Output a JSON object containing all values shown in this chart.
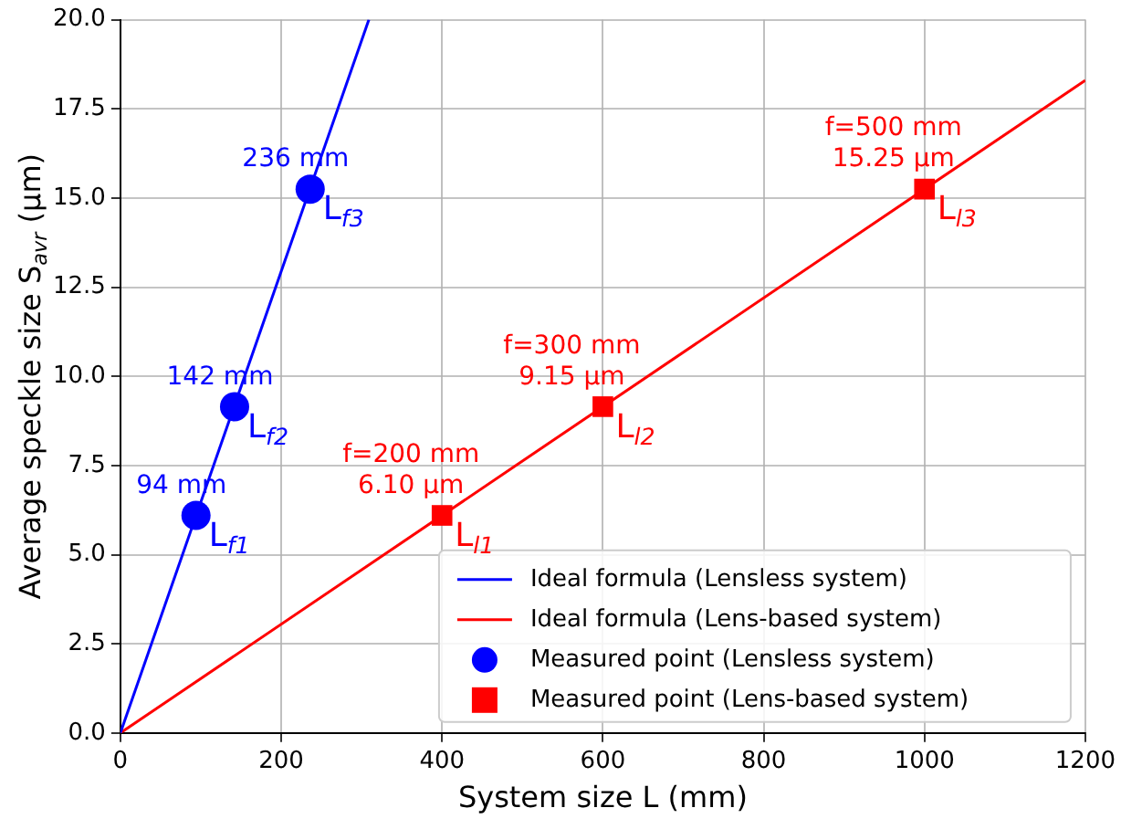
{
  "chart_data": {
    "type": "line",
    "xlabel": "System size L (mm)",
    "ylabel": "Average speckle size S$_{avr}$ (µm)",
    "xlim": [
      0,
      1200
    ],
    "xticks": [
      0,
      200,
      400,
      600,
      800,
      1000,
      1200
    ],
    "ylim": [
      0,
      20
    ],
    "yticks": [
      {
        "value": 0,
        "label": "0.0"
      },
      {
        "value": 2.5,
        "label": "2.5"
      },
      {
        "value": 5,
        "label": "5.0"
      },
      {
        "value": 7.5,
        "label": "7.5"
      },
      {
        "value": 10,
        "label": "10.0"
      },
      {
        "value": 12.5,
        "label": "12.5"
      },
      {
        "value": 15,
        "label": "15.0"
      },
      {
        "value": 17.5,
        "label": "17.5"
      },
      {
        "value": 20,
        "label": "20.0"
      }
    ],
    "grid": true,
    "legend": "bottom right",
    "series": [
      {
        "name": "Ideal formula (Lensless system)",
        "type": "line",
        "color": "#0000ff",
        "x": [
          0,
          309
        ],
        "values": [
          0,
          20
        ],
        "marker": "none"
      },
      {
        "name": "Ideal formula (Lens-based system)",
        "type": "line",
        "color": "#ff0000",
        "x": [
          0,
          1200
        ],
        "values": [
          0,
          18.3
        ],
        "marker": "none"
      },
      {
        "name": "Measured point (Lensless system)",
        "type": "scatter",
        "color": "#0000ff",
        "x": [
          94,
          142,
          236
        ],
        "values": [
          6.1,
          9.15,
          15.25
        ],
        "marker": "circle"
      },
      {
        "name": "Measured point (Lens-based system)",
        "type": "scatter",
        "color": "#ff0000",
        "x": [
          400,
          600,
          1000
        ],
        "values": [
          6.1,
          9.15,
          15.25
        ],
        "marker": "square"
      }
    ],
    "annotations": [
      {
        "text": "94 mm",
        "x": 94,
        "y": 6.1
      },
      {
        "text": "L$_{f1}$",
        "x": 94,
        "y": 6.1
      },
      {
        "text": "142 mm",
        "x": 142,
        "y": 9.15
      },
      {
        "text": "L$_{f2}$",
        "x": 142,
        "y": 9.15
      },
      {
        "text": "236 mm",
        "x": 236,
        "y": 15.25
      },
      {
        "text": "L$_{f3}$",
        "x": 236,
        "y": 15.25
      },
      {
        "text": "f=200 mm\n6.10 µm",
        "x": 400,
        "y": 6.1
      },
      {
        "text": "L$_{l1}$",
        "x": 400,
        "y": 6.1
      },
      {
        "text": "f=300 mm\n9.15 µm",
        "x": 600,
        "y": 9.15
      },
      {
        "text": "L$_{l2}$",
        "x": 600,
        "y": 9.15
      },
      {
        "text": "f=500 mm\n15.25 µm",
        "x": 1000,
        "y": 15.25
      },
      {
        "text": "L$_{l3}$",
        "x": 1000,
        "y": 15.25
      }
    ]
  }
}
